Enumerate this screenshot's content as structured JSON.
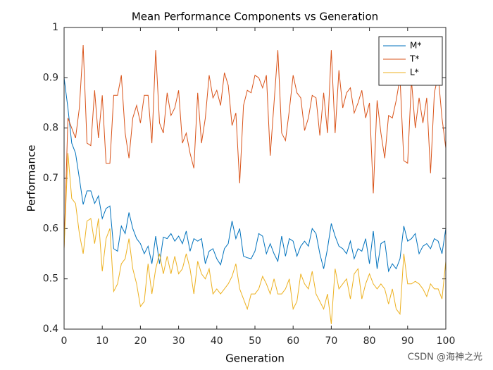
{
  "chart_data": {
    "type": "line",
    "title": "Mean Performance Components vs Generation",
    "xlabel": "Generation",
    "ylabel": "Performance",
    "watermark": "CSDN @海神之光",
    "x": [
      0,
      1,
      2,
      3,
      4,
      5,
      6,
      7,
      8,
      9,
      10,
      11,
      12,
      13,
      14,
      15,
      16,
      17,
      18,
      19,
      20,
      21,
      22,
      23,
      24,
      25,
      26,
      27,
      28,
      29,
      30,
      31,
      32,
      33,
      34,
      35,
      36,
      37,
      38,
      39,
      40,
      41,
      42,
      43,
      44,
      45,
      46,
      47,
      48,
      49,
      50,
      51,
      52,
      53,
      54,
      55,
      56,
      57,
      58,
      59,
      60,
      61,
      62,
      63,
      64,
      65,
      66,
      67,
      68,
      69,
      70,
      71,
      72,
      73,
      74,
      75,
      76,
      77,
      78,
      79,
      80,
      81,
      82,
      83,
      84,
      85,
      86,
      87,
      88,
      89,
      90,
      91,
      92,
      93,
      94,
      95,
      96,
      97,
      98,
      99,
      100
    ],
    "series": [
      {
        "name": "M*",
        "color": "#0072BD",
        "values": [
          0.9,
          0.84,
          0.77,
          0.75,
          0.7,
          0.648,
          0.675,
          0.675,
          0.65,
          0.665,
          0.62,
          0.64,
          0.645,
          0.56,
          0.555,
          0.605,
          0.59,
          0.632,
          0.6,
          0.58,
          0.57,
          0.55,
          0.565,
          0.53,
          0.585,
          0.53,
          0.583,
          0.58,
          0.59,
          0.575,
          0.585,
          0.57,
          0.595,
          0.555,
          0.58,
          0.575,
          0.58,
          0.53,
          0.555,
          0.56,
          0.54,
          0.528,
          0.56,
          0.57,
          0.615,
          0.58,
          0.6,
          0.545,
          0.542,
          0.54,
          0.555,
          0.59,
          0.585,
          0.55,
          0.57,
          0.55,
          0.535,
          0.585,
          0.545,
          0.58,
          0.575,
          0.545,
          0.565,
          0.575,
          0.565,
          0.6,
          0.59,
          0.55,
          0.52,
          0.56,
          0.61,
          0.585,
          0.565,
          0.56,
          0.55,
          0.575,
          0.54,
          0.56,
          0.555,
          0.58,
          0.53,
          0.595,
          0.52,
          0.57,
          0.575,
          0.515,
          0.53,
          0.52,
          0.54,
          0.605,
          0.575,
          0.58,
          0.59,
          0.55,
          0.565,
          0.57,
          0.56,
          0.58,
          0.575,
          0.55,
          0.6
        ]
      },
      {
        "name": "T*",
        "color": "#D95319",
        "values": [
          0.56,
          0.82,
          0.8,
          0.78,
          0.84,
          0.965,
          0.77,
          0.765,
          0.875,
          0.78,
          0.865,
          0.73,
          0.73,
          0.865,
          0.865,
          0.905,
          0.79,
          0.74,
          0.82,
          0.845,
          0.81,
          0.865,
          0.865,
          0.77,
          0.955,
          0.81,
          0.79,
          0.87,
          0.825,
          0.84,
          0.875,
          0.77,
          0.79,
          0.75,
          0.72,
          0.87,
          0.77,
          0.82,
          0.905,
          0.86,
          0.875,
          0.845,
          0.91,
          0.885,
          0.805,
          0.83,
          0.69,
          0.845,
          0.875,
          0.87,
          0.905,
          0.9,
          0.88,
          0.905,
          0.745,
          0.85,
          0.955,
          0.79,
          0.775,
          0.835,
          0.905,
          0.87,
          0.86,
          0.795,
          0.82,
          0.865,
          0.86,
          0.785,
          0.87,
          0.79,
          0.955,
          0.79,
          0.915,
          0.84,
          0.87,
          0.88,
          0.83,
          0.85,
          0.875,
          0.82,
          0.85,
          0.67,
          0.855,
          0.79,
          0.74,
          0.825,
          0.82,
          0.855,
          0.9,
          0.735,
          0.73,
          0.895,
          0.8,
          0.86,
          0.81,
          0.86,
          0.71,
          0.87,
          0.905,
          0.82,
          0.76
        ]
      },
      {
        "name": "L*",
        "color": "#EDB120",
        "values": [
          0.56,
          0.75,
          0.66,
          0.65,
          0.59,
          0.55,
          0.615,
          0.62,
          0.57,
          0.62,
          0.515,
          0.58,
          0.6,
          0.475,
          0.49,
          0.53,
          0.54,
          0.58,
          0.52,
          0.49,
          0.445,
          0.455,
          0.53,
          0.47,
          0.52,
          0.55,
          0.51,
          0.545,
          0.51,
          0.545,
          0.51,
          0.52,
          0.55,
          0.52,
          0.47,
          0.535,
          0.51,
          0.5,
          0.52,
          0.47,
          0.48,
          0.47,
          0.48,
          0.49,
          0.505,
          0.53,
          0.48,
          0.46,
          0.44,
          0.47,
          0.47,
          0.48,
          0.505,
          0.49,
          0.47,
          0.5,
          0.47,
          0.47,
          0.48,
          0.5,
          0.44,
          0.455,
          0.51,
          0.49,
          0.48,
          0.515,
          0.47,
          0.455,
          0.44,
          0.47,
          0.41,
          0.52,
          0.48,
          0.49,
          0.5,
          0.46,
          0.51,
          0.52,
          0.46,
          0.49,
          0.51,
          0.49,
          0.48,
          0.49,
          0.48,
          0.45,
          0.48,
          0.44,
          0.43,
          0.55,
          0.49,
          0.49,
          0.495,
          0.49,
          0.48,
          0.465,
          0.49,
          0.48,
          0.48,
          0.46,
          0.535
        ]
      }
    ],
    "xlim": [
      0,
      100
    ],
    "xticks": [
      0,
      10,
      20,
      30,
      40,
      50,
      60,
      70,
      80,
      90,
      100
    ],
    "ylim": [
      0.4,
      1
    ],
    "yticks": [
      0.4,
      0.5,
      0.6,
      0.7,
      0.8,
      0.9,
      1
    ],
    "grid": false,
    "legend": "northeast"
  }
}
